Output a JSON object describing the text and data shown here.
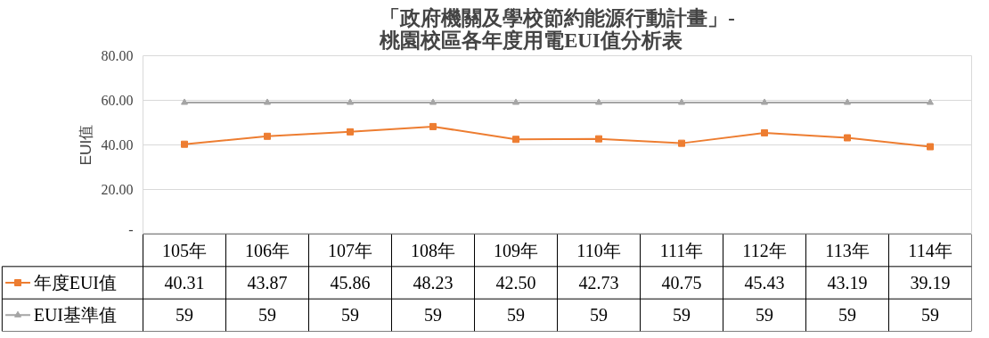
{
  "chart_data": {
    "type": "line",
    "title": "「政府機關及學校節約能源行動計畫」-\n桃園校區各年度用電EUI值分析表",
    "ylabel": "EUI值",
    "categories": [
      "105年",
      "106年",
      "107年",
      "108年",
      "109年",
      "110年",
      "111年",
      "112年",
      "113年",
      "114年"
    ],
    "series": [
      {
        "name": "年度EUI值",
        "color": "#ed7d31",
        "marker": "square",
        "values": [
          40.31,
          43.87,
          45.86,
          48.23,
          42.5,
          42.73,
          40.75,
          45.43,
          43.19,
          39.19
        ],
        "value_labels": [
          "40.31",
          "43.87",
          "45.86",
          "48.23",
          "42.50",
          "42.73",
          "40.75",
          "45.43",
          "43.19",
          "39.19"
        ]
      },
      {
        "name": "EUI基準值",
        "color": "#a5a5a5",
        "marker": "triangle",
        "values": [
          59,
          59,
          59,
          59,
          59,
          59,
          59,
          59,
          59,
          59
        ],
        "value_labels": [
          "59",
          "59",
          "59",
          "59",
          "59",
          "59",
          "59",
          "59",
          "59",
          "59"
        ]
      }
    ],
    "ylim": [
      0,
      80
    ],
    "yticks": [
      {
        "value": 0,
        "label": "-"
      },
      {
        "value": 20,
        "label": "20.00"
      },
      {
        "value": 40,
        "label": "40.00"
      },
      {
        "value": 60,
        "label": "60.00"
      },
      {
        "value": 80,
        "label": "80.00"
      }
    ],
    "grid": "y",
    "legend": "bottom left"
  }
}
